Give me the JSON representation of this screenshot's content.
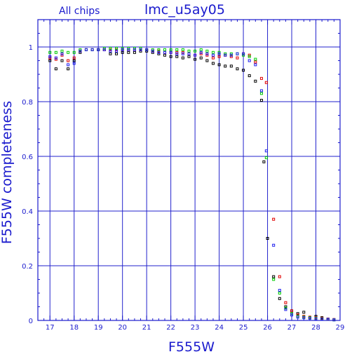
{
  "chart_data": {
    "type": "scatter",
    "title": "lmc_u5ay05",
    "subtitle": "All chips",
    "xlabel": "F555W",
    "ylabel": "F555W completeness",
    "xlim": [
      16.5,
      29
    ],
    "ylim": [
      0,
      1.1
    ],
    "grid": true,
    "x_ticks": [
      17,
      18,
      19,
      20,
      21,
      22,
      23,
      24,
      25,
      26,
      27,
      28,
      29
    ],
    "y_ticks": [
      0,
      0.2,
      0.4,
      0.6,
      0.8,
      1
    ],
    "y_tick_labels": [
      "0",
      "0.2",
      "0.4",
      "0.6",
      "0.8",
      "1"
    ],
    "colors": {
      "axes": "#1a1acd",
      "grid": "#2222cc"
    },
    "series": [
      {
        "color": "#000000",
        "points": [
          [
            17.0,
            0.95
          ],
          [
            17.25,
            0.92
          ],
          [
            17.5,
            0.95
          ],
          [
            17.75,
            0.92
          ],
          [
            18.0,
            0.95
          ],
          [
            18.25,
            0.98
          ],
          [
            18.5,
            0.99
          ],
          [
            18.75,
            0.99
          ],
          [
            19.0,
            0.99
          ],
          [
            19.25,
            0.99
          ],
          [
            19.5,
            0.975
          ],
          [
            19.75,
            0.975
          ],
          [
            20.0,
            0.98
          ],
          [
            20.25,
            0.98
          ],
          [
            20.5,
            0.98
          ],
          [
            20.75,
            0.985
          ],
          [
            21.0,
            0.985
          ],
          [
            21.25,
            0.98
          ],
          [
            21.5,
            0.975
          ],
          [
            21.75,
            0.97
          ],
          [
            22.0,
            0.965
          ],
          [
            22.25,
            0.965
          ],
          [
            22.5,
            0.96
          ],
          [
            22.75,
            0.965
          ],
          [
            23.0,
            0.955
          ],
          [
            23.25,
            0.96
          ],
          [
            23.5,
            0.95
          ],
          [
            23.75,
            0.94
          ],
          [
            24.0,
            0.935
          ],
          [
            24.25,
            0.93
          ],
          [
            24.5,
            0.93
          ],
          [
            24.75,
            0.92
          ],
          [
            25.0,
            0.915
          ],
          [
            25.25,
            0.895
          ],
          [
            25.5,
            0.875
          ],
          [
            25.75,
            0.805
          ],
          [
            25.85,
            0.58
          ],
          [
            26.0,
            0.3
          ],
          [
            26.25,
            0.16
          ],
          [
            26.5,
            0.08
          ],
          [
            26.75,
            0.05
          ],
          [
            27.0,
            0.035
          ],
          [
            27.25,
            0.025
          ],
          [
            27.5,
            0.03
          ],
          [
            27.75,
            0.01
          ],
          [
            28.0,
            0.015
          ],
          [
            28.25,
            0.01
          ],
          [
            28.5,
            0.005
          ],
          [
            28.75,
            0.003
          ]
        ]
      },
      {
        "color": "#e00000",
        "points": [
          [
            17.0,
            0.96
          ],
          [
            17.25,
            0.955
          ],
          [
            17.5,
            0.97
          ],
          [
            17.75,
            0.95
          ],
          [
            18.0,
            0.96
          ],
          [
            18.25,
            0.985
          ],
          [
            18.5,
            0.99
          ],
          [
            18.75,
            0.99
          ],
          [
            19.0,
            0.99
          ],
          [
            19.25,
            0.99
          ],
          [
            19.5,
            0.99
          ],
          [
            19.75,
            0.99
          ],
          [
            20.0,
            0.99
          ],
          [
            20.25,
            0.99
          ],
          [
            20.5,
            0.99
          ],
          [
            20.75,
            0.99
          ],
          [
            21.0,
            0.99
          ],
          [
            21.25,
            0.985
          ],
          [
            21.5,
            0.985
          ],
          [
            21.75,
            0.98
          ],
          [
            22.0,
            0.98
          ],
          [
            22.25,
            0.98
          ],
          [
            22.5,
            0.98
          ],
          [
            22.75,
            0.975
          ],
          [
            23.0,
            0.97
          ],
          [
            23.25,
            0.975
          ],
          [
            23.5,
            0.97
          ],
          [
            23.75,
            0.96
          ],
          [
            24.0,
            0.965
          ],
          [
            24.25,
            0.97
          ],
          [
            24.5,
            0.965
          ],
          [
            24.75,
            0.96
          ],
          [
            25.0,
            0.975
          ],
          [
            25.25,
            0.97
          ],
          [
            25.5,
            0.945
          ],
          [
            25.75,
            0.885
          ],
          [
            25.95,
            0.87
          ],
          [
            26.25,
            0.37
          ],
          [
            26.5,
            0.16
          ],
          [
            26.75,
            0.065
          ],
          [
            27.0,
            0.035
          ],
          [
            27.25,
            0.02
          ],
          [
            27.5,
            0.015
          ],
          [
            27.75,
            0.012
          ],
          [
            28.0,
            0.01
          ],
          [
            28.25,
            0.008
          ],
          [
            28.5,
            0.005
          ],
          [
            28.75,
            0.003
          ]
        ]
      },
      {
        "color": "#00cc00",
        "points": [
          [
            17.0,
            0.98
          ],
          [
            17.25,
            0.98
          ],
          [
            17.5,
            0.985
          ],
          [
            17.75,
            0.98
          ],
          [
            18.0,
            0.98
          ],
          [
            18.25,
            0.99
          ],
          [
            18.5,
            0.99
          ],
          [
            18.75,
            0.99
          ],
          [
            19.0,
            0.99
          ],
          [
            19.25,
            0.995
          ],
          [
            19.5,
            0.995
          ],
          [
            19.75,
            0.995
          ],
          [
            20.0,
            0.995
          ],
          [
            20.25,
            0.995
          ],
          [
            20.5,
            0.995
          ],
          [
            20.75,
            0.995
          ],
          [
            21.0,
            0.99
          ],
          [
            21.25,
            0.99
          ],
          [
            21.5,
            0.99
          ],
          [
            21.75,
            0.99
          ],
          [
            22.0,
            0.99
          ],
          [
            22.25,
            0.99
          ],
          [
            22.5,
            0.99
          ],
          [
            22.75,
            0.985
          ],
          [
            23.0,
            0.985
          ],
          [
            23.25,
            0.99
          ],
          [
            23.5,
            0.985
          ],
          [
            23.75,
            0.98
          ],
          [
            24.0,
            0.98
          ],
          [
            24.25,
            0.975
          ],
          [
            24.5,
            0.975
          ],
          [
            24.75,
            0.975
          ],
          [
            25.0,
            0.97
          ],
          [
            25.25,
            0.965
          ],
          [
            25.5,
            0.955
          ],
          [
            25.75,
            0.83
          ],
          [
            25.95,
            0.595
          ],
          [
            26.25,
            0.15
          ],
          [
            26.5,
            0.1
          ],
          [
            26.75,
            0.045
          ],
          [
            27.0,
            0.025
          ],
          [
            27.25,
            0.015
          ],
          [
            27.5,
            0.012
          ],
          [
            27.75,
            0.01
          ],
          [
            28.0,
            0.008
          ],
          [
            28.25,
            0.006
          ],
          [
            28.5,
            0.004
          ],
          [
            28.75,
            0.002
          ]
        ]
      },
      {
        "color": "#2020ee",
        "points": [
          [
            17.0,
            0.965
          ],
          [
            17.25,
            0.96
          ],
          [
            17.5,
            0.975
          ],
          [
            17.75,
            0.935
          ],
          [
            18.0,
            0.94
          ],
          [
            18.25,
            0.985
          ],
          [
            18.5,
            0.99
          ],
          [
            18.75,
            0.99
          ],
          [
            19.0,
            0.99
          ],
          [
            19.25,
            0.99
          ],
          [
            19.5,
            0.985
          ],
          [
            19.75,
            0.985
          ],
          [
            20.0,
            0.99
          ],
          [
            20.25,
            0.99
          ],
          [
            20.5,
            0.99
          ],
          [
            20.75,
            0.99
          ],
          [
            21.0,
            0.99
          ],
          [
            21.25,
            0.985
          ],
          [
            21.5,
            0.98
          ],
          [
            21.75,
            0.98
          ],
          [
            22.0,
            0.98
          ],
          [
            22.25,
            0.975
          ],
          [
            22.5,
            0.975
          ],
          [
            22.75,
            0.975
          ],
          [
            23.0,
            0.97
          ],
          [
            23.25,
            0.98
          ],
          [
            23.5,
            0.975
          ],
          [
            23.75,
            0.97
          ],
          [
            24.0,
            0.975
          ],
          [
            24.25,
            0.97
          ],
          [
            24.5,
            0.97
          ],
          [
            24.75,
            0.975
          ],
          [
            25.0,
            0.975
          ],
          [
            25.25,
            0.95
          ],
          [
            25.5,
            0.935
          ],
          [
            25.75,
            0.84
          ],
          [
            25.95,
            0.62
          ],
          [
            26.25,
            0.275
          ],
          [
            26.5,
            0.11
          ],
          [
            26.75,
            0.04
          ],
          [
            27.0,
            0.02
          ],
          [
            27.25,
            0.012
          ],
          [
            27.5,
            0.01
          ],
          [
            27.75,
            0.008
          ],
          [
            28.0,
            0.006
          ],
          [
            28.25,
            0.005
          ],
          [
            28.5,
            0.004
          ],
          [
            28.75,
            0.002
          ]
        ]
      }
    ]
  }
}
